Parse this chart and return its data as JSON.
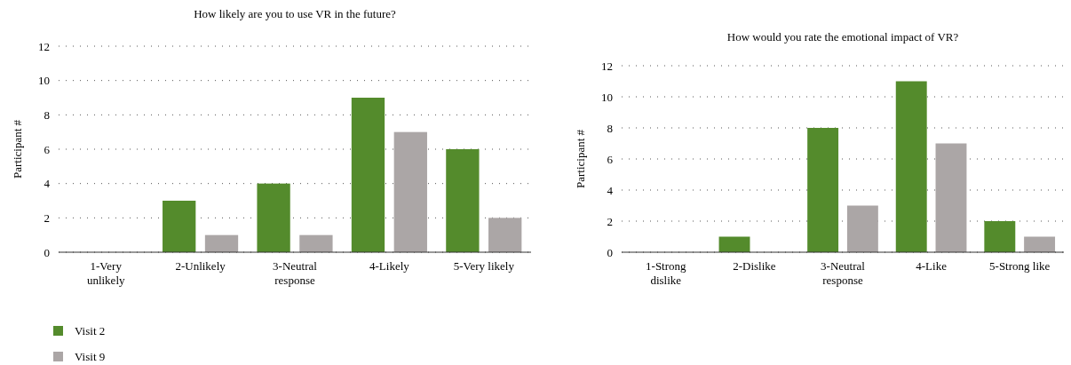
{
  "chart_data": [
    {
      "type": "bar",
      "title": "How likely are you to use VR in the future?",
      "ylabel": "Participant #",
      "categories": [
        "1-Very unlikely",
        "2-Unlikely",
        "3-Neutral response",
        "4-Likely",
        "5-Very likely"
      ],
      "series": [
        {
          "name": "Visit 2",
          "color": "#548b2c",
          "values": [
            0,
            3,
            4,
            9,
            6
          ]
        },
        {
          "name": "Visit 9",
          "color": "#aba6a6",
          "values": [
            0,
            1,
            1,
            7,
            2
          ]
        }
      ],
      "ylim": [
        0,
        12
      ],
      "yticks": [
        0,
        2,
        4,
        6,
        8,
        10,
        12
      ],
      "grid": "y",
      "legend": "bottom left"
    },
    {
      "type": "bar",
      "title": "How would you rate the emotional impact of VR?",
      "ylabel": "Participant #",
      "categories": [
        "1-Strong dislike",
        "2-Dislike",
        "3-Neutral response",
        "4-Like",
        "5-Strong like"
      ],
      "series": [
        {
          "color": "#548b2c",
          "values": [
            0,
            1,
            8,
            11,
            2
          ]
        },
        {
          "color": "#aba6a6",
          "values": [
            0,
            0,
            3,
            7,
            1
          ]
        }
      ],
      "ylim": [
        0,
        12
      ],
      "yticks": [
        0,
        2,
        4,
        6,
        8,
        10,
        12
      ],
      "grid": "y"
    }
  ]
}
